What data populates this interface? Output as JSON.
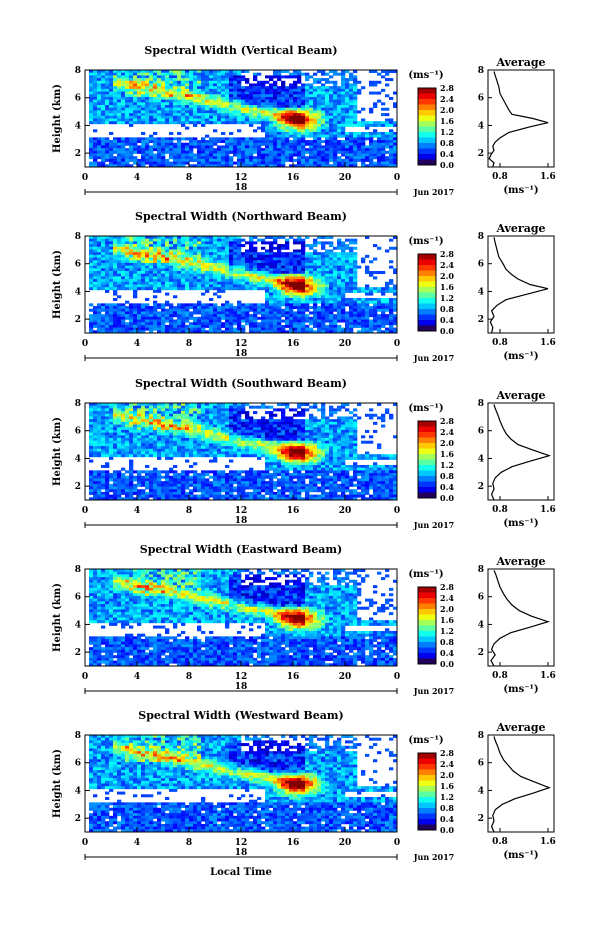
{
  "chart_data": [
    {
      "type": "heatmap",
      "title": "Spectral Width (Vertical Beam)",
      "ylabel": "Height (km)",
      "x_ticks": [
        "0",
        "4",
        "8",
        "12",
        "16",
        "20",
        "0"
      ],
      "date_label": "18",
      "month_label": "Jun 2017",
      "xlim": [
        0,
        24
      ],
      "ylim": [
        1,
        8
      ],
      "y_ticks": [
        "2",
        "4",
        "6",
        "8"
      ],
      "colorbar": {
        "label": "(ms⁻¹)",
        "ticks": [
          "2.8",
          "2.4",
          "2.0",
          "1.6",
          "1.2",
          "0.8",
          "0.4",
          "0.0"
        ],
        "range": [
          0,
          2.8
        ]
      },
      "profile": {
        "title": "Average",
        "xlabel": "(ms⁻¹)",
        "x_ticks": [
          "0.8",
          "1.6"
        ],
        "xlim": [
          0.6,
          1.7
        ],
        "points": [
          [
            0.68,
            1.0
          ],
          [
            0.7,
            1.3
          ],
          [
            0.62,
            1.6
          ],
          [
            0.65,
            1.9
          ],
          [
            0.7,
            2.2
          ],
          [
            0.68,
            2.5
          ],
          [
            0.72,
            2.8
          ],
          [
            0.8,
            3.1
          ],
          [
            0.95,
            3.5
          ],
          [
            1.3,
            3.9
          ],
          [
            1.6,
            4.2
          ],
          [
            1.35,
            4.5
          ],
          [
            1.0,
            4.8
          ],
          [
            0.95,
            5.1
          ],
          [
            0.9,
            5.5
          ],
          [
            0.85,
            5.9
          ],
          [
            0.8,
            6.3
          ],
          [
            0.78,
            6.8
          ],
          [
            0.75,
            7.2
          ],
          [
            0.72,
            7.6
          ],
          [
            0.7,
            7.9
          ]
        ]
      }
    },
    {
      "type": "heatmap",
      "title": "Spectral Width (Northward Beam)",
      "ylabel": "Height (km)",
      "x_ticks": [
        "0",
        "4",
        "8",
        "12",
        "16",
        "20",
        "0"
      ],
      "date_label": "18",
      "month_label": "Jun 2017",
      "xlim": [
        0,
        24
      ],
      "ylim": [
        1,
        8
      ],
      "y_ticks": [
        "2",
        "4",
        "6",
        "8"
      ],
      "colorbar": {
        "label": "(ms⁻¹)",
        "ticks": [
          "2.8",
          "2.4",
          "2.0",
          "1.6",
          "1.2",
          "0.8",
          "0.4",
          "0.0"
        ],
        "range": [
          0,
          2.8
        ]
      },
      "profile": {
        "title": "Average",
        "xlabel": "(ms⁻¹)",
        "x_ticks": [
          "0.8",
          "1.6"
        ],
        "xlim": [
          0.6,
          1.7
        ],
        "points": [
          [
            0.66,
            1.0
          ],
          [
            0.68,
            1.4
          ],
          [
            0.64,
            1.8
          ],
          [
            0.7,
            2.2
          ],
          [
            0.66,
            2.6
          ],
          [
            0.75,
            3.0
          ],
          [
            0.9,
            3.4
          ],
          [
            1.25,
            3.8
          ],
          [
            1.6,
            4.2
          ],
          [
            1.3,
            4.5
          ],
          [
            1.1,
            4.9
          ],
          [
            1.0,
            5.2
          ],
          [
            0.9,
            5.6
          ],
          [
            0.85,
            6.0
          ],
          [
            0.78,
            6.5
          ],
          [
            0.75,
            7.0
          ],
          [
            0.72,
            7.5
          ],
          [
            0.7,
            7.9
          ]
        ]
      }
    },
    {
      "type": "heatmap",
      "title": "Spectral Width (Southward Beam)",
      "ylabel": "Height (km)",
      "x_ticks": [
        "0",
        "4",
        "8",
        "12",
        "16",
        "20",
        "0"
      ],
      "date_label": "18",
      "month_label": "Jun 2017",
      "xlim": [
        0,
        24
      ],
      "ylim": [
        1,
        8
      ],
      "y_ticks": [
        "2",
        "4",
        "6",
        "8"
      ],
      "colorbar": {
        "label": "(ms⁻¹)",
        "ticks": [
          "2.8",
          "2.4",
          "2.0",
          "1.6",
          "1.2",
          "0.8",
          "0.4",
          "0.0"
        ],
        "range": [
          0,
          2.8
        ]
      },
      "profile": {
        "title": "Average",
        "xlabel": "(ms⁻¹)",
        "x_ticks": [
          "0.8",
          "1.6"
        ],
        "xlim": [
          0.6,
          1.7
        ],
        "points": [
          [
            0.7,
            1.0
          ],
          [
            0.66,
            1.4
          ],
          [
            0.7,
            1.8
          ],
          [
            0.68,
            2.2
          ],
          [
            0.72,
            2.6
          ],
          [
            0.82,
            3.0
          ],
          [
            1.0,
            3.4
          ],
          [
            1.3,
            3.8
          ],
          [
            1.62,
            4.2
          ],
          [
            1.35,
            4.6
          ],
          [
            1.1,
            5.0
          ],
          [
            0.98,
            5.4
          ],
          [
            0.9,
            5.8
          ],
          [
            0.85,
            6.2
          ],
          [
            0.8,
            6.7
          ],
          [
            0.76,
            7.2
          ],
          [
            0.72,
            7.6
          ],
          [
            0.7,
            7.9
          ]
        ]
      }
    },
    {
      "type": "heatmap",
      "title": "Spectral Width (Eastward Beam)",
      "ylabel": "Height (km)",
      "x_ticks": [
        "0",
        "4",
        "8",
        "12",
        "16",
        "20",
        "0"
      ],
      "date_label": "18",
      "month_label": "Jun 2017",
      "xlim": [
        0,
        24
      ],
      "ylim": [
        1,
        8
      ],
      "y_ticks": [
        "2",
        "4",
        "6",
        "8"
      ],
      "colorbar": {
        "label": "(ms⁻¹)",
        "ticks": [
          "2.8",
          "2.4",
          "2.0",
          "1.6",
          "1.2",
          "0.8",
          "0.4",
          "0.0"
        ],
        "range": [
          0,
          2.8
        ]
      },
      "profile": {
        "title": "Average",
        "xlabel": "(ms⁻¹)",
        "x_ticks": [
          "0.8",
          "1.6"
        ],
        "xlim": [
          0.6,
          1.7
        ],
        "points": [
          [
            0.7,
            1.0
          ],
          [
            0.65,
            1.4
          ],
          [
            0.72,
            1.8
          ],
          [
            0.66,
            2.2
          ],
          [
            0.7,
            2.6
          ],
          [
            0.8,
            3.0
          ],
          [
            0.98,
            3.4
          ],
          [
            1.3,
            3.8
          ],
          [
            1.6,
            4.2
          ],
          [
            1.32,
            4.6
          ],
          [
            1.12,
            5.0
          ],
          [
            1.0,
            5.4
          ],
          [
            0.92,
            5.8
          ],
          [
            0.86,
            6.2
          ],
          [
            0.8,
            6.7
          ],
          [
            0.76,
            7.2
          ],
          [
            0.73,
            7.6
          ],
          [
            0.7,
            7.9
          ]
        ]
      }
    },
    {
      "type": "heatmap",
      "title": "Spectral Width (Westward Beam)",
      "ylabel": "Height (km)",
      "xlabel": "Local Time",
      "x_ticks": [
        "0",
        "4",
        "8",
        "12",
        "16",
        "20",
        "0"
      ],
      "date_label": "18",
      "month_label": "Jun 2017",
      "xlim": [
        0,
        24
      ],
      "ylim": [
        1,
        8
      ],
      "y_ticks": [
        "2",
        "4",
        "6",
        "8"
      ],
      "colorbar": {
        "label": "(ms⁻¹)",
        "ticks": [
          "2.8",
          "2.4",
          "2.0",
          "1.6",
          "1.2",
          "0.8",
          "0.4",
          "0.0"
        ],
        "range": [
          0,
          2.8
        ]
      },
      "profile": {
        "title": "Average",
        "xlabel": "(ms⁻¹)",
        "x_ticks": [
          "0.8",
          "1.6"
        ],
        "xlim": [
          0.6,
          1.7
        ],
        "points": [
          [
            0.7,
            1.0
          ],
          [
            0.66,
            1.4
          ],
          [
            0.7,
            1.8
          ],
          [
            0.68,
            2.2
          ],
          [
            0.72,
            2.6
          ],
          [
            0.84,
            3.0
          ],
          [
            1.05,
            3.4
          ],
          [
            1.35,
            3.8
          ],
          [
            1.62,
            4.2
          ],
          [
            1.38,
            4.6
          ],
          [
            1.15,
            5.0
          ],
          [
            1.02,
            5.4
          ],
          [
            0.94,
            5.8
          ],
          [
            0.86,
            6.2
          ],
          [
            0.8,
            6.7
          ],
          [
            0.76,
            7.2
          ],
          [
            0.72,
            7.6
          ],
          [
            0.7,
            7.9
          ]
        ]
      }
    }
  ]
}
